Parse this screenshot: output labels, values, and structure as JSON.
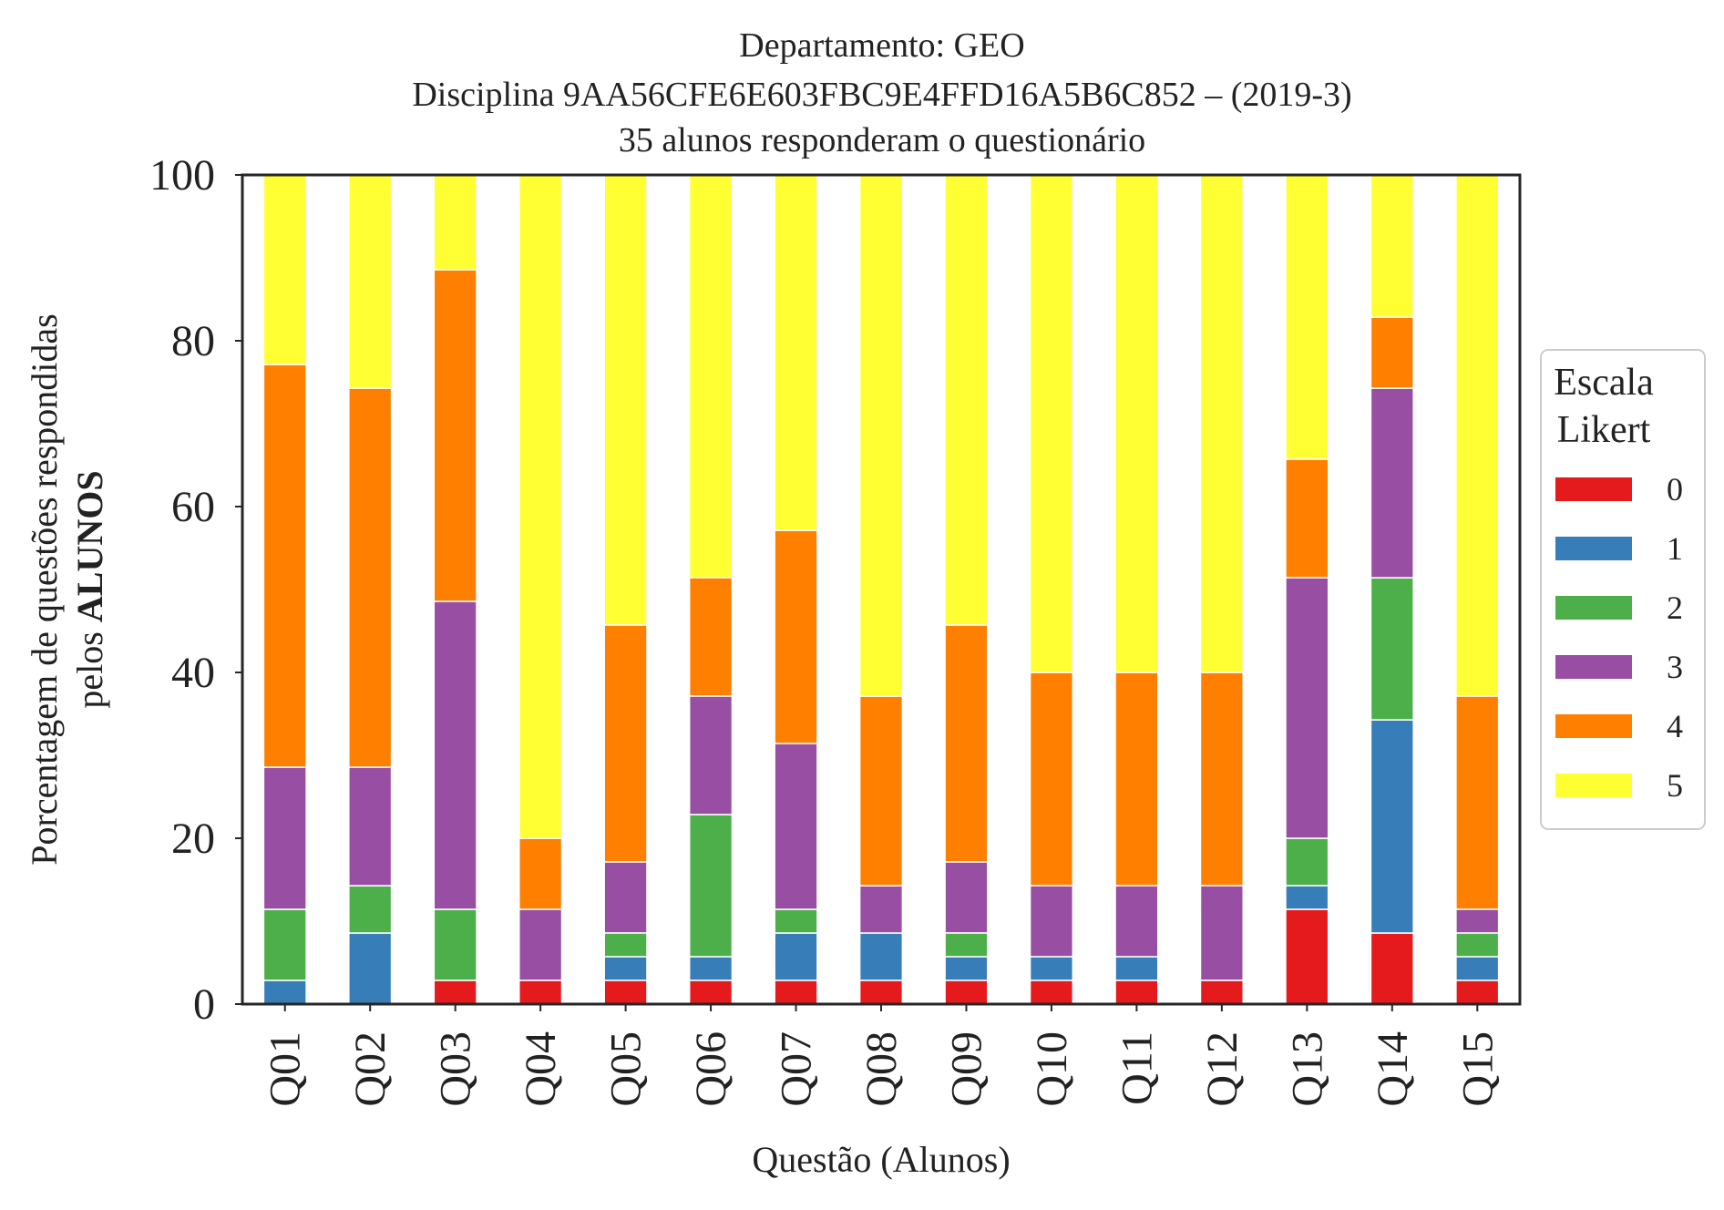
{
  "chart_data": {
    "type": "bar",
    "stacked": true,
    "title_lines": [
      "Departamento: GEO",
      "Disciplina 9AA56CFE6E603FBC9E4FFD16A5B6C852 – (2019-3)",
      "35 alunos responderam o questionário"
    ],
    "xlabel": "Questão (Alunos)",
    "ylabel_line1": "Porcentagem de questões respondidas",
    "ylabel_line2_prefix": "pelos ",
    "ylabel_line2_bold": "ALUNOS",
    "ylim": [
      0,
      100
    ],
    "yticks": [
      "0",
      "20",
      "40",
      "60",
      "80",
      "100"
    ],
    "grid": false,
    "legend": {
      "title_lines": [
        "Escala",
        "Likert"
      ],
      "placement": "center-right-outside"
    },
    "categories": [
      "Q01",
      "Q02",
      "Q03",
      "Q04",
      "Q05",
      "Q06",
      "Q07",
      "Q08",
      "Q09",
      "Q10",
      "Q11",
      "Q12",
      "Q13",
      "Q14",
      "Q15"
    ],
    "series": [
      {
        "name": "0",
        "color": "#e41a1c",
        "values": [
          0,
          0,
          2.86,
          2.86,
          2.86,
          2.86,
          2.86,
          2.86,
          2.86,
          2.86,
          2.86,
          2.86,
          11.43,
          8.57,
          2.86
        ]
      },
      {
        "name": "1",
        "color": "#377eb8",
        "values": [
          2.86,
          8.57,
          0,
          0,
          2.86,
          2.86,
          5.71,
          5.71,
          2.86,
          2.86,
          2.86,
          0,
          2.86,
          25.71,
          2.86
        ]
      },
      {
        "name": "2",
        "color": "#4daf4a",
        "values": [
          8.57,
          5.71,
          8.57,
          0,
          2.86,
          17.14,
          2.86,
          0,
          2.86,
          0,
          0,
          0,
          5.71,
          17.14,
          2.86
        ]
      },
      {
        "name": "3",
        "color": "#984ea3",
        "values": [
          17.14,
          14.29,
          37.14,
          8.57,
          8.57,
          14.29,
          20.0,
          5.71,
          8.57,
          8.57,
          8.57,
          11.43,
          31.43,
          22.86,
          2.86
        ]
      },
      {
        "name": "4",
        "color": "#ff7f00",
        "values": [
          48.57,
          45.71,
          40.0,
          8.57,
          28.57,
          14.29,
          25.71,
          22.86,
          28.57,
          25.71,
          25.71,
          25.71,
          14.29,
          8.57,
          25.71
        ]
      },
      {
        "name": "5",
        "color": "#ffff33",
        "values": [
          22.86,
          25.71,
          11.43,
          80.0,
          54.29,
          48.57,
          42.86,
          62.86,
          54.29,
          60.0,
          60.0,
          60.0,
          34.29,
          17.14,
          62.86
        ]
      }
    ]
  }
}
